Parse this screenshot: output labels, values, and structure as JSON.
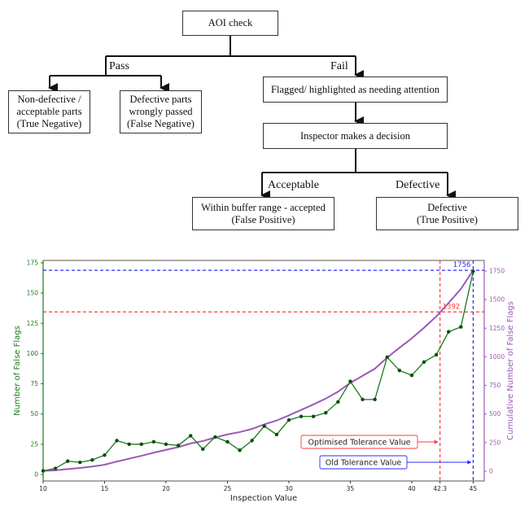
{
  "flowchart": {
    "root": "AOI check",
    "pass_label": "Pass",
    "fail_label": "Fail",
    "pass_outcomes": [
      [
        "Non-defective /",
        "acceptable parts",
        "(True Negative)"
      ],
      [
        "Defective parts",
        "wrongly passed",
        "(False Negative)"
      ]
    ],
    "flagged": "Flagged/ highlighted as needing attention",
    "decision": "Inspector makes a decision",
    "acceptable_label": "Acceptable",
    "defective_label": "Defective",
    "fail_outcomes": [
      [
        "Within buffer range - accepted",
        "(False Positive)"
      ],
      [
        "Defective",
        "(True Positive)"
      ]
    ]
  },
  "chart_data": {
    "type": "line",
    "xlabel": "Inspection Value",
    "ylabel": "Number of False Flags",
    "y2label": "Cumulative Number of False Flags",
    "xlim": [
      10,
      45.9
    ],
    "ylim": [
      -5.4,
      177
    ],
    "y2lim": [
      -85,
      1842
    ],
    "xticks": [
      "10",
      "15",
      "20",
      "25",
      "30",
      "35",
      "40",
      "42.3",
      "45"
    ],
    "xtick_values": [
      10,
      15,
      20,
      25,
      30,
      35,
      40,
      42.3,
      45
    ],
    "yticks": [
      0,
      25,
      50,
      75,
      100,
      125,
      150,
      175
    ],
    "y2ticks": [
      0,
      250,
      500,
      750,
      1000,
      1250,
      1500,
      1750
    ],
    "x": [
      10,
      11,
      12,
      13,
      14,
      15,
      16,
      17,
      18,
      19,
      20,
      21,
      22,
      23,
      24,
      25,
      26,
      27,
      28,
      29,
      30,
      31,
      32,
      33,
      34,
      35,
      36,
      37,
      38,
      39,
      40,
      41,
      42,
      43,
      44,
      45
    ],
    "series": [
      {
        "name": "Number of False Flags",
        "axis": "left",
        "color": "#1a7a1a",
        "values": [
          3,
          5,
          11,
          10,
          12,
          16,
          28,
          25,
          25,
          27,
          25,
          24,
          32,
          21,
          31,
          27,
          20,
          28,
          40,
          33,
          45,
          48,
          48,
          51,
          60,
          77,
          62,
          62,
          97,
          86,
          82,
          93,
          99,
          118,
          122,
          168
        ]
      },
      {
        "name": "Cumulative Number of False Flags",
        "axis": "right",
        "color": "#9b59b6",
        "values": [
          3,
          8,
          19,
          29,
          41,
          57,
          85,
          110,
          135,
          162,
          187,
          211,
          243,
          264,
          295,
          322,
          342,
          370,
          410,
          443,
          488,
          536,
          584,
          635,
          695,
          772,
          834,
          896,
          993,
          1079,
          1161,
          1254,
          1353,
          1471,
          1593,
          1756
        ]
      }
    ],
    "annotations": [
      {
        "label": "Optimised Tolerance Value",
        "x": 42.3,
        "y2": 1392,
        "value_label": "1392",
        "color": "#ff3b3b"
      },
      {
        "label": "Old Tolerance Value",
        "x": 45,
        "y2": 1756,
        "value_label": "1756",
        "color": "#2a2aff"
      }
    ]
  }
}
